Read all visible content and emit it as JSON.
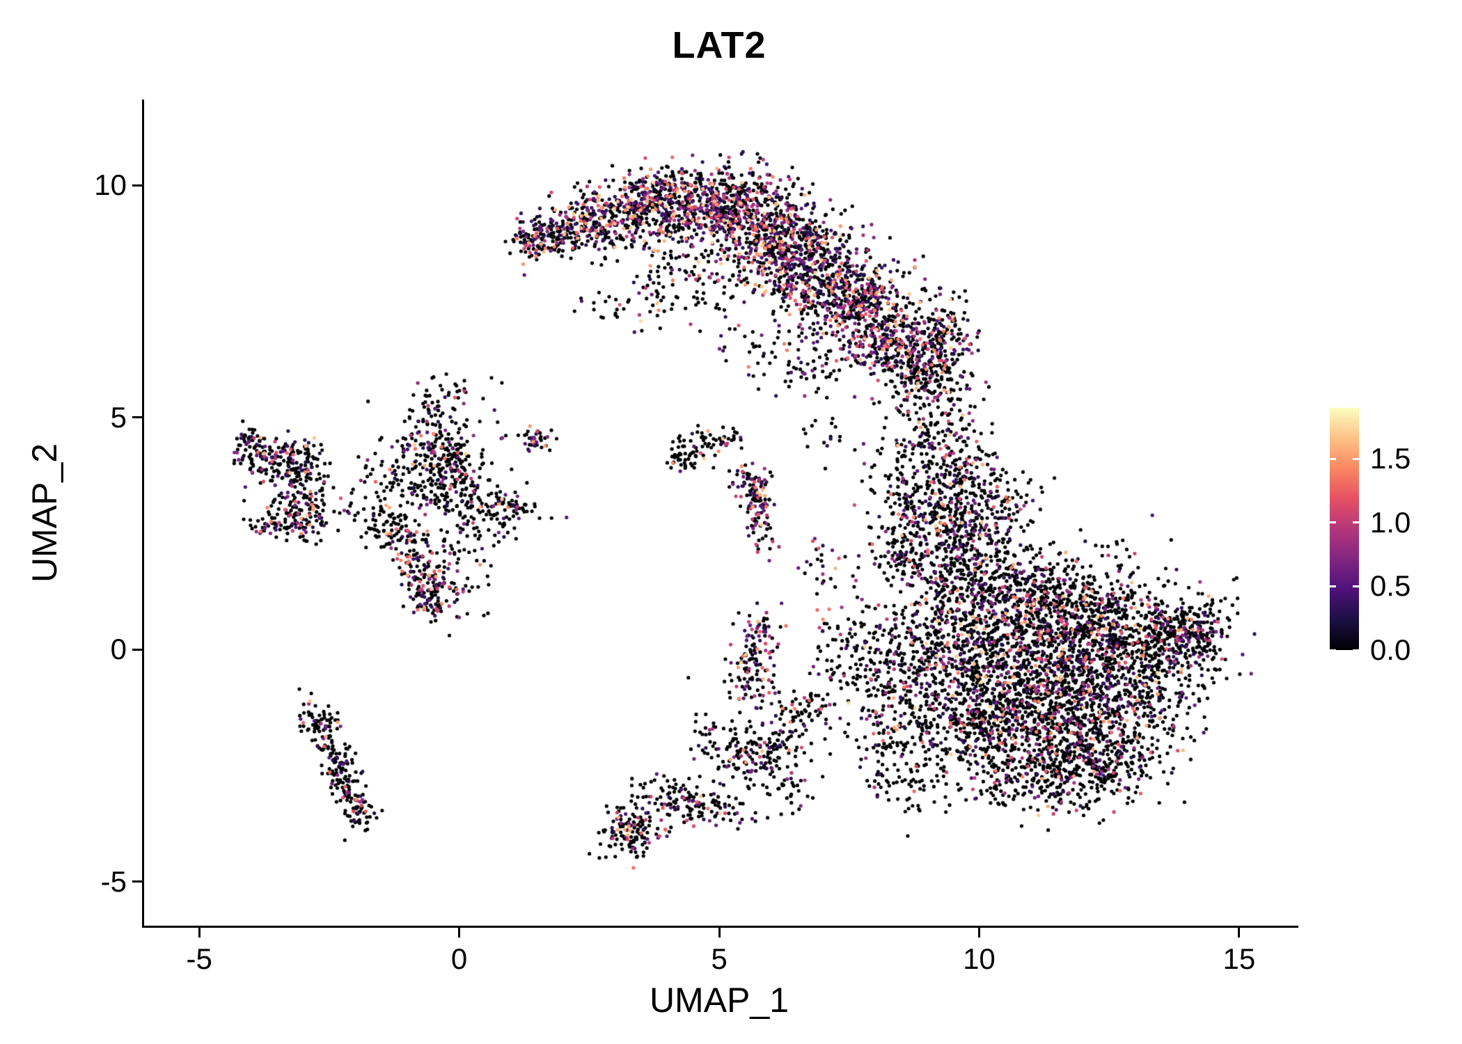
{
  "title": "LAT2",
  "axes": {
    "xlabel": "UMAP_1",
    "ylabel": "UMAP_2",
    "x_ticks": [
      -5,
      0,
      5,
      10,
      15
    ],
    "y_ticks": [
      -5,
      0,
      5,
      10
    ],
    "xlim": [
      -6.1,
      16.1
    ],
    "ylim": [
      -5.95,
      11.85
    ]
  },
  "colorbar": {
    "vmin": 0.0,
    "vmax": 1.9,
    "colormap": "magma",
    "ticks": [
      {
        "value": 1.5,
        "label": "1.5"
      },
      {
        "value": 1.0,
        "label": "1.0"
      },
      {
        "value": 0.5,
        "label": "0.5"
      },
      {
        "value": 0.0,
        "label": "0.0"
      }
    ],
    "stops": [
      [
        0.0,
        "#000004"
      ],
      [
        0.125,
        "#1c1044"
      ],
      [
        0.25,
        "#4f127b"
      ],
      [
        0.375,
        "#812581"
      ],
      [
        0.5,
        "#b5367a"
      ],
      [
        0.625,
        "#e55064"
      ],
      [
        0.75,
        "#fb8761"
      ],
      [
        0.875,
        "#fec287"
      ],
      [
        1.0,
        "#fcfdbf"
      ]
    ]
  },
  "chart_data": {
    "type": "scatter",
    "title": "LAT2",
    "xlabel": "UMAP_1",
    "ylabel": "UMAP_2",
    "xlim": [
      -6.1,
      16.1
    ],
    "ylim": [
      -5.95,
      11.85
    ],
    "legend": "expression colorbar, magma colormap, ticks 0.0-1.5",
    "point_radius": 2.6,
    "seed": 42,
    "vmax": 1.9,
    "value_floor": 0.25,
    "value_span": 1.5,
    "cluster_fields": [
      "n",
      "cx",
      "cy",
      "sx",
      "sy",
      "rot",
      "colored_fraction"
    ],
    "clusters": [
      [
        150,
        1.6,
        8.85,
        0.32,
        0.25,
        0,
        0.4
      ],
      [
        220,
        2.5,
        9.2,
        0.45,
        0.35,
        0,
        0.45
      ],
      [
        280,
        3.5,
        9.55,
        0.5,
        0.35,
        0,
        0.45
      ],
      [
        320,
        4.5,
        9.7,
        0.55,
        0.4,
        0,
        0.45
      ],
      [
        340,
        5.4,
        9.45,
        0.55,
        0.45,
        0,
        0.45
      ],
      [
        340,
        6.1,
        8.9,
        0.5,
        0.5,
        0,
        0.45
      ],
      [
        330,
        6.7,
        8.3,
        0.5,
        0.5,
        0,
        0.45
      ],
      [
        300,
        7.3,
        7.7,
        0.5,
        0.5,
        0,
        0.45
      ],
      [
        260,
        7.9,
        7.1,
        0.5,
        0.5,
        0,
        0.4
      ],
      [
        200,
        8.4,
        6.5,
        0.45,
        0.45,
        0,
        0.4
      ],
      [
        120,
        9.0,
        6.3,
        0.35,
        0.4,
        0,
        0.35
      ],
      [
        100,
        9.35,
        7.0,
        0.25,
        0.5,
        0,
        0.35
      ],
      [
        70,
        4.3,
        8.6,
        0.7,
        0.45,
        0,
        0.3
      ],
      [
        50,
        4.9,
        7.9,
        0.6,
        0.4,
        0,
        0.3
      ],
      [
        40,
        3.9,
        7.6,
        0.5,
        0.35,
        0,
        0.3
      ],
      [
        20,
        3.0,
        7.3,
        0.4,
        0.3,
        0,
        0.3
      ],
      [
        60,
        6.6,
        6.1,
        0.5,
        0.45,
        0,
        0.3
      ],
      [
        25,
        5.6,
        6.6,
        0.4,
        0.3,
        0,
        0.3
      ],
      [
        110,
        -3.75,
        4.15,
        0.3,
        0.3,
        0,
        0.3
      ],
      [
        120,
        -3.15,
        3.85,
        0.35,
        0.35,
        0,
        0.3
      ],
      [
        130,
        -3.05,
        3.0,
        0.3,
        0.3,
        0,
        0.3
      ],
      [
        40,
        -3.6,
        2.65,
        0.2,
        0.12,
        0,
        0.25
      ],
      [
        20,
        -4.05,
        4.45,
        0.12,
        0.15,
        0,
        0.3
      ],
      [
        190,
        -0.45,
        4.35,
        0.45,
        0.45,
        0,
        0.25
      ],
      [
        140,
        -0.35,
        3.5,
        0.45,
        0.35,
        0,
        0.2
      ],
      [
        100,
        -1.25,
        2.55,
        0.45,
        0.22,
        -0.45,
        0.2
      ],
      [
        130,
        -0.62,
        1.3,
        0.22,
        0.38,
        0.1,
        0.5
      ],
      [
        70,
        0.35,
        2.8,
        0.35,
        0.45,
        0,
        0.2
      ],
      [
        70,
        0.95,
        3.1,
        0.38,
        0.18,
        -0.25,
        0.25
      ],
      [
        40,
        1.45,
        4.55,
        0.22,
        0.15,
        0,
        0.35
      ],
      [
        45,
        -0.2,
        5.4,
        0.45,
        0.28,
        0,
        0.2
      ],
      [
        60,
        -1.5,
        3.55,
        0.38,
        0.38,
        0,
        0.2
      ],
      [
        50,
        -0.85,
        1.95,
        0.3,
        0.25,
        0,
        0.3
      ],
      [
        25,
        0.1,
        1.4,
        0.3,
        0.3,
        0,
        0.2
      ],
      [
        170,
        -2.35,
        -2.55,
        0.16,
        0.7,
        0.38,
        0.18
      ],
      [
        40,
        -2.7,
        -1.55,
        0.18,
        0.18,
        0,
        0.2
      ],
      [
        25,
        -1.95,
        -3.6,
        0.15,
        0.2,
        0,
        0.15
      ],
      [
        60,
        4.6,
        4.35,
        0.35,
        0.2,
        0.25,
        0.2
      ],
      [
        20,
        4.25,
        4.1,
        0.15,
        0.15,
        0,
        0.2
      ],
      [
        110,
        5.72,
        3.0,
        0.14,
        0.42,
        0.12,
        0.5
      ],
      [
        30,
        5.45,
        3.7,
        0.2,
        0.15,
        0,
        0.35
      ],
      [
        15,
        5.15,
        4.55,
        0.15,
        0.1,
        0,
        0.2
      ],
      [
        130,
        3.25,
        -3.95,
        0.28,
        0.3,
        -0.3,
        0.3
      ],
      [
        150,
        4.4,
        -3.25,
        0.55,
        0.22,
        -0.2,
        0.25
      ],
      [
        130,
        5.8,
        -2.2,
        0.45,
        0.28,
        0.55,
        0.2
      ],
      [
        90,
        5.6,
        -0.55,
        0.25,
        0.45,
        0,
        0.35
      ],
      [
        50,
        5.75,
        0.35,
        0.2,
        0.3,
        0,
        0.5
      ],
      [
        60,
        6.7,
        -1.3,
        0.3,
        0.3,
        0,
        0.2
      ],
      [
        50,
        4.9,
        -2.0,
        0.4,
        0.35,
        0,
        0.15
      ],
      [
        40,
        6.3,
        -2.9,
        0.35,
        0.3,
        0,
        0.15
      ],
      [
        30,
        7.0,
        -0.3,
        0.25,
        0.35,
        0,
        0.2
      ],
      [
        25,
        7.3,
        0.9,
        0.3,
        0.4,
        0,
        0.25
      ],
      [
        20,
        6.9,
        1.9,
        0.18,
        0.25,
        0,
        0.5
      ],
      [
        110,
        9.3,
        5.3,
        0.45,
        0.45,
        0,
        0.25
      ],
      [
        140,
        9.0,
        4.3,
        0.5,
        0.5,
        0,
        0.25
      ],
      [
        150,
        9.7,
        3.6,
        0.45,
        0.45,
        0,
        0.25
      ],
      [
        150,
        9.1,
        2.9,
        0.45,
        0.4,
        0,
        0.25
      ],
      [
        140,
        9.9,
        2.5,
        0.45,
        0.4,
        0,
        0.25
      ],
      [
        100,
        8.5,
        2.1,
        0.4,
        0.35,
        0,
        0.25
      ],
      [
        50,
        8.3,
        3.4,
        0.25,
        0.5,
        0,
        0.2
      ],
      [
        50,
        10.5,
        3.1,
        0.3,
        0.5,
        0,
        0.2
      ],
      [
        30,
        8.8,
        5.9,
        0.3,
        0.2,
        0,
        0.25
      ],
      [
        15,
        6.9,
        4.6,
        0.25,
        0.3,
        0,
        0.2
      ],
      [
        280,
        9.0,
        0.1,
        0.6,
        0.8,
        0,
        0.2
      ],
      [
        380,
        10.0,
        0.4,
        0.7,
        0.8,
        0,
        0.22
      ],
      [
        480,
        11.0,
        0.1,
        0.8,
        0.8,
        0,
        0.22
      ],
      [
        480,
        12.0,
        0.3,
        0.8,
        0.75,
        0,
        0.22
      ],
      [
        380,
        13.0,
        0.1,
        0.7,
        0.65,
        0,
        0.22
      ],
      [
        240,
        13.9,
        0.2,
        0.45,
        0.55,
        0,
        0.22
      ],
      [
        330,
        10.6,
        -1.3,
        0.7,
        0.6,
        0,
        0.22
      ],
      [
        380,
        11.6,
        -1.5,
        0.8,
        0.6,
        0,
        0.22
      ],
      [
        280,
        12.6,
        -1.7,
        0.7,
        0.55,
        0,
        0.22
      ],
      [
        190,
        9.6,
        -1.6,
        0.55,
        0.5,
        0,
        0.2
      ],
      [
        230,
        10.9,
        -2.7,
        0.7,
        0.45,
        0,
        0.2
      ],
      [
        180,
        12.1,
        -2.7,
        0.6,
        0.4,
        0,
        0.2
      ],
      [
        140,
        8.3,
        -0.7,
        0.45,
        0.6,
        0,
        0.2
      ],
      [
        90,
        8.2,
        -2.2,
        0.4,
        0.5,
        0,
        0.15
      ],
      [
        180,
        10.3,
        1.5,
        0.6,
        0.35,
        0,
        0.22
      ],
      [
        140,
        11.6,
        1.2,
        0.55,
        0.35,
        0,
        0.22
      ],
      [
        60,
        9.3,
        1.9,
        0.35,
        0.3,
        0,
        0.22
      ],
      [
        40,
        14.35,
        0.3,
        0.2,
        0.3,
        0,
        0.3
      ],
      [
        50,
        8.9,
        -2.9,
        0.4,
        0.3,
        0,
        0.15
      ],
      [
        30,
        7.8,
        0.3,
        0.3,
        0.4,
        0,
        0.2
      ]
    ]
  }
}
